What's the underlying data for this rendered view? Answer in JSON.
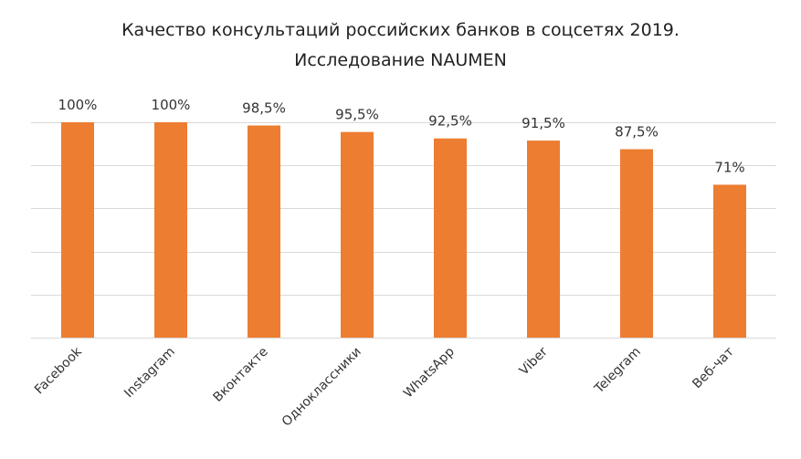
{
  "title": {
    "line1": "Качество консультаций российских банков в соцсетях 2019.",
    "line2": "Исследование NAUMEN"
  },
  "chart_data": {
    "type": "bar",
    "categories": [
      "Facebook",
      "Instagram",
      "Вконтакте",
      "Одноклассники",
      "WhatsApp",
      "Viber",
      "Telegram",
      "Веб-чат"
    ],
    "values": [
      100,
      100,
      98.5,
      95.5,
      92.5,
      91.5,
      87.5,
      71
    ],
    "data_labels": [
      "100%",
      "100%",
      "98,5%",
      "95,5%",
      "92,5%",
      "91,5%",
      "87,5%",
      "71%"
    ],
    "ylim": [
      0,
      100
    ],
    "grid": true,
    "legend": "none",
    "bar_color": "#ED7D31",
    "grid_color": "#D9D9D9"
  }
}
